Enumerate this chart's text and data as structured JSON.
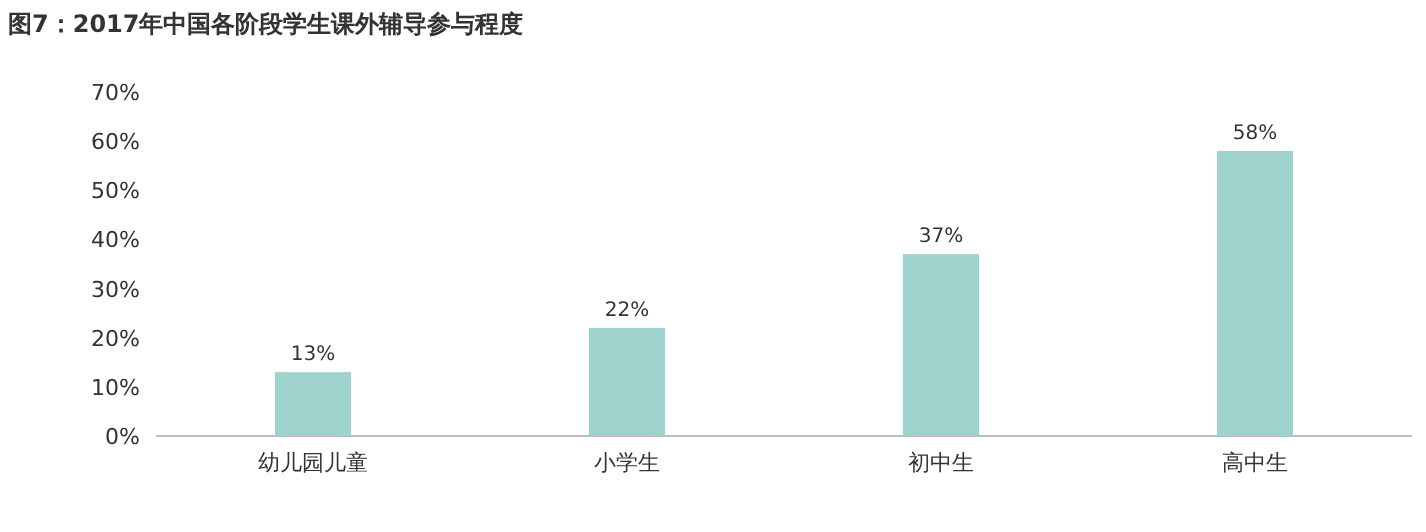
{
  "chart_data": {
    "type": "bar",
    "title": "图7：2017年中国各阶段学生课外辅导参与程度",
    "categories": [
      "幼儿园儿童",
      "小学生",
      "初中生",
      "高中生"
    ],
    "values": [
      13,
      22,
      37,
      58
    ],
    "value_labels": [
      "13%",
      "22%",
      "37%",
      "58%"
    ],
    "color": "#9dd3cc",
    "ylim": [
      0,
      70
    ],
    "yticks": [
      {
        "value": 0,
        "label": "0%"
      },
      {
        "value": 10,
        "label": "10%"
      },
      {
        "value": 20,
        "label": "20%"
      },
      {
        "value": 30,
        "label": "30%"
      },
      {
        "value": 40,
        "label": "40%"
      },
      {
        "value": 50,
        "label": "50%"
      },
      {
        "value": 60,
        "label": "60%"
      },
      {
        "value": 70,
        "label": "70%"
      }
    ],
    "grid": false
  }
}
